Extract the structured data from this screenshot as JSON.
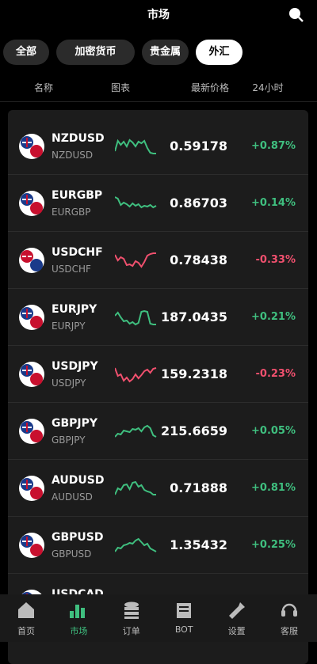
{
  "header": {
    "title": "市场"
  },
  "tabs": [
    "全部",
    "加密货币",
    "贵金属",
    "外汇"
  ],
  "columns": [
    "名称",
    "图表",
    "最新价格",
    "24小时"
  ],
  "rows": [
    {
      "symbol": "NZDUSD",
      "sub": "NZDUSD",
      "price": "0.59178",
      "change": "+0.87%"
    },
    {
      "symbol": "EURGBP",
      "sub": "EURGBP",
      "price": "0.86703",
      "change": "+0.14%"
    },
    {
      "symbol": "USDCHF",
      "sub": "USDCHF",
      "price": "0.78438",
      "change": "-0.33%"
    },
    {
      "symbol": "EURJPY",
      "sub": "EURJPY",
      "price": "187.0435",
      "change": "+0.21%"
    },
    {
      "symbol": "USDJPY",
      "sub": "USDJPY",
      "price": "159.2318",
      "change": "-0.23%"
    },
    {
      "symbol": "GBPJPY",
      "sub": "GBPJPY",
      "price": "215.6659",
      "change": "+0.05%"
    },
    {
      "symbol": "AUDUSD",
      "sub": "AUDUSD",
      "price": "0.71888",
      "change": "+0.81%"
    },
    {
      "symbol": "GBPUSD",
      "sub": "GBPUSD",
      "price": "1.35432",
      "change": "+0.25%"
    },
    {
      "symbol": "USDCAD"
    }
  ],
  "nav": [
    "首页",
    "市场",
    "订单",
    "BOT",
    "设置",
    "客服"
  ]
}
